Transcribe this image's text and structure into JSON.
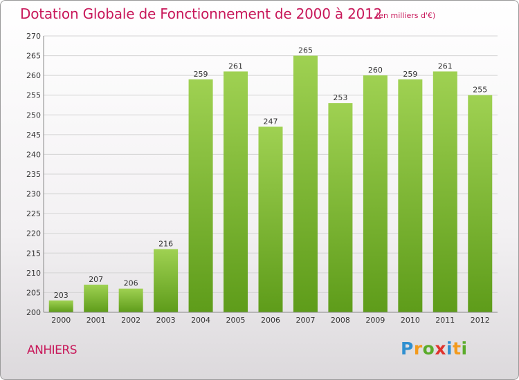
{
  "title": "Dotation Globale de Fonctionnement de 2000 à 2012",
  "unit_note": "(en milliers d'€)",
  "commune": "ANHIERS",
  "logo_text": "Proxiti",
  "colors": {
    "title": "#c8185a",
    "bar_top": "#9fd152",
    "bar_bottom": "#5e9c1a",
    "grid": "#d4d4d4",
    "axis_text": "#333333"
  },
  "chart_data": {
    "type": "bar",
    "title": "Dotation Globale de Fonctionnement de 2000 à 2012",
    "subtitle": "(en milliers d'€)",
    "categories": [
      "2000",
      "2001",
      "2002",
      "2003",
      "2004",
      "2005",
      "2006",
      "2007",
      "2008",
      "2009",
      "2010",
      "2011",
      "2012"
    ],
    "values": [
      203,
      207,
      206,
      216,
      259,
      261,
      247,
      265,
      253,
      260,
      259,
      261,
      255
    ],
    "ylim": [
      200,
      270
    ],
    "yticks": [
      200,
      205,
      210,
      215,
      220,
      225,
      230,
      235,
      240,
      245,
      250,
      255,
      260,
      265,
      270
    ],
    "grid": true,
    "xlabel": "",
    "ylabel": ""
  }
}
